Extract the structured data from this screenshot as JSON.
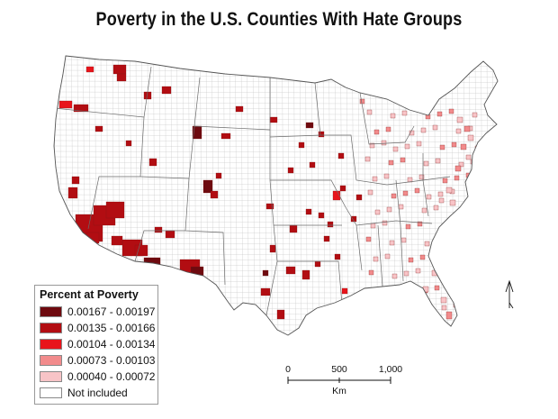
{
  "title": "Poverty in the U.S. Counties With Hate Groups",
  "legend": {
    "title": "Percent at Poverty",
    "items": [
      {
        "label": "0.00167 - 0.00197",
        "color": "#6e0a0f"
      },
      {
        "label": "0.00135 - 0.00166",
        "color": "#b20d12"
      },
      {
        "label": "0.00104 - 0.00134",
        "color": "#e8141b"
      },
      {
        "label": "0.00073 - 0.00103",
        "color": "#f28b8c"
      },
      {
        "label": "0.00040 - 0.00072",
        "color": "#f8c4c7"
      },
      {
        "label": "Not included",
        "color": "#ffffff"
      }
    ]
  },
  "scale_bar": {
    "ticks": [
      "0",
      "500",
      "1,000"
    ],
    "unit": "Km"
  },
  "north_arrow": "north-arrow-icon",
  "colors": {
    "background": "#ffffff",
    "county_border": "#c9c9c9",
    "state_border": "#555555"
  }
}
